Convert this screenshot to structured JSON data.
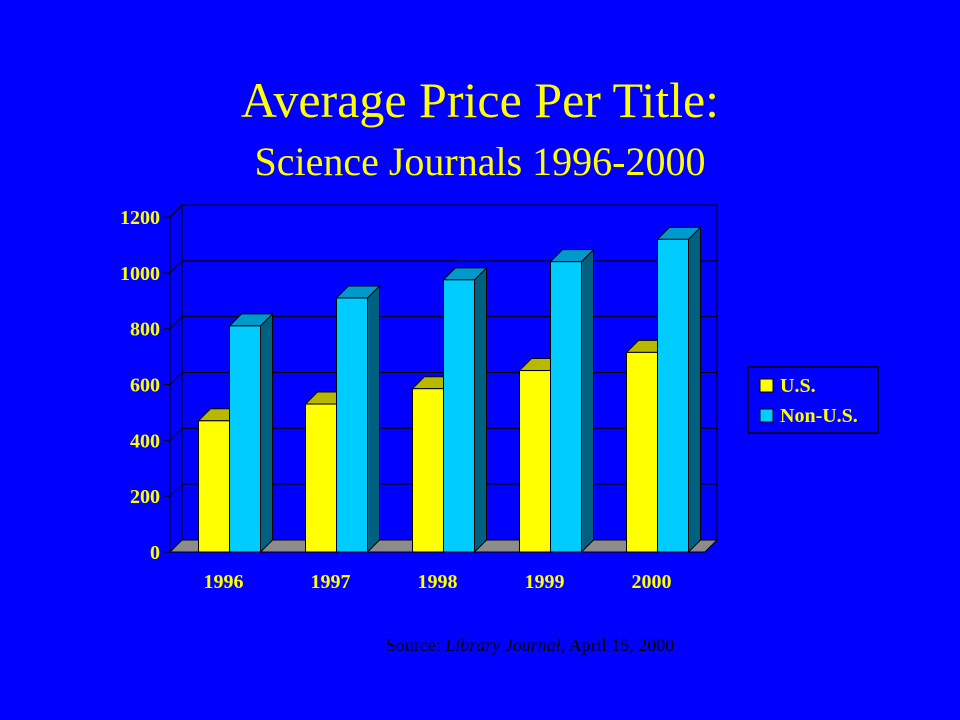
{
  "slide": {
    "title": "Average Price Per Title:",
    "subtitle": "Science Journals 1996-2000",
    "source": {
      "prefix": "Source: ",
      "publication": "Library Journal",
      "suffix": ", April 15, 2000"
    }
  },
  "colors": {
    "background": "#0000ff",
    "text": "#ffff00",
    "us_front": "#ffff00",
    "us_top": "#b8b800",
    "us_side": "#8a8a00",
    "nonus_front": "#00ccff",
    "nonus_top": "#0099cc",
    "nonus_side": "#006080",
    "plot_bg": "#0000ff",
    "floor": "#8c8c8c",
    "gridline": "#000000"
  },
  "chart_data": {
    "type": "bar",
    "title": "",
    "xlabel": "",
    "ylabel": "",
    "categories": [
      "1996",
      "1997",
      "1998",
      "1999",
      "2000"
    ],
    "ylim": [
      0,
      1200
    ],
    "yticks": [
      "0",
      "200",
      "400",
      "600",
      "800",
      "1000",
      "1200"
    ],
    "grid": true,
    "legend": "right",
    "series": [
      {
        "name": "U.S.",
        "values": [
          470,
          530,
          585,
          650,
          715
        ]
      },
      {
        "name": "Non-U.S.",
        "values": [
          810,
          910,
          975,
          1040,
          1120
        ]
      }
    ]
  }
}
